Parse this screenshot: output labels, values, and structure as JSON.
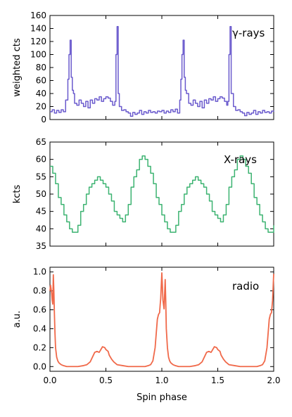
{
  "chart_data": [
    {
      "type": "line",
      "step": true,
      "label": "γ-rays",
      "ylabel": "weighted cts",
      "ylim": [
        0,
        160
      ],
      "yticks": [
        "0",
        "20",
        "40",
        "60",
        "80",
        "100",
        "120",
        "140",
        "160"
      ],
      "xlim": [
        0.0,
        2.0
      ],
      "color": "#6a5acd",
      "series": [
        {
          "x": [
            0.0,
            0.02,
            0.04,
            0.06,
            0.08,
            0.1,
            0.12,
            0.14,
            0.16,
            0.17,
            0.18,
            0.19,
            0.2,
            0.21,
            0.22,
            0.24,
            0.26,
            0.28,
            0.3,
            0.32,
            0.34,
            0.36,
            0.38,
            0.4,
            0.42,
            0.44,
            0.46,
            0.48,
            0.5,
            0.52,
            0.54,
            0.56,
            0.58,
            0.59,
            0.6,
            0.61,
            0.62,
            0.64,
            0.66,
            0.68,
            0.7,
            0.72,
            0.74,
            0.76,
            0.78,
            0.8,
            0.82,
            0.84,
            0.86,
            0.88,
            0.9,
            0.92,
            0.94,
            0.96,
            0.98,
            1.0,
            1.02,
            1.04,
            1.06,
            1.08,
            1.1,
            1.12,
            1.14,
            1.16,
            1.17,
            1.18,
            1.19,
            1.2,
            1.21,
            1.22,
            1.24,
            1.26,
            1.28,
            1.3,
            1.32,
            1.34,
            1.36,
            1.38,
            1.4,
            1.42,
            1.44,
            1.46,
            1.48,
            1.5,
            1.52,
            1.54,
            1.56,
            1.58,
            1.59,
            1.6,
            1.61,
            1.62,
            1.64,
            1.66,
            1.68,
            1.7,
            1.72,
            1.74,
            1.76,
            1.78,
            1.8,
            1.82,
            1.84,
            1.86,
            1.88,
            1.9,
            1.92,
            1.94,
            1.96,
            1.98,
            2.0
          ],
          "y": [
            12,
            15,
            10,
            14,
            11,
            15,
            12,
            30,
            62,
            100,
            122,
            65,
            45,
            40,
            25,
            22,
            30,
            25,
            20,
            28,
            18,
            30,
            25,
            32,
            30,
            35,
            28,
            32,
            35,
            33,
            28,
            22,
            28,
            100,
            143,
            40,
            20,
            14,
            15,
            12,
            10,
            5,
            11,
            8,
            10,
            14,
            8,
            12,
            10,
            14,
            11,
            12,
            10,
            13,
            12,
            14,
            10,
            13,
            11,
            15,
            12,
            16,
            10,
            30,
            62,
            100,
            122,
            65,
            45,
            40,
            25,
            22,
            30,
            25,
            20,
            28,
            18,
            30,
            25,
            32,
            30,
            35,
            28,
            32,
            35,
            33,
            28,
            22,
            28,
            100,
            143,
            40,
            20,
            14,
            15,
            12,
            10,
            6,
            11,
            8,
            10,
            14,
            8,
            12,
            10,
            14,
            11,
            12,
            10,
            13,
            12
          ]
        }
      ]
    },
    {
      "type": "line",
      "step": true,
      "label": "X-rays",
      "ylabel": "kcts",
      "ylim": [
        35,
        65
      ],
      "yticks": [
        "35",
        "40",
        "45",
        "50",
        "55",
        "60",
        "65"
      ],
      "xlim": [
        0.0,
        2.0
      ],
      "color": "#3cb371",
      "series": [
        {
          "x": [
            0.0,
            0.025,
            0.05,
            0.075,
            0.1,
            0.125,
            0.15,
            0.175,
            0.2,
            0.225,
            0.25,
            0.275,
            0.3,
            0.325,
            0.35,
            0.375,
            0.4,
            0.425,
            0.45,
            0.475,
            0.5,
            0.525,
            0.55,
            0.575,
            0.6,
            0.625,
            0.65,
            0.675,
            0.7,
            0.725,
            0.75,
            0.775,
            0.8,
            0.825,
            0.85,
            0.875,
            0.9,
            0.925,
            0.95,
            0.975,
            1.0,
            1.025,
            1.05,
            1.075,
            1.1,
            1.125,
            1.15,
            1.175,
            1.2,
            1.225,
            1.25,
            1.275,
            1.3,
            1.325,
            1.35,
            1.375,
            1.4,
            1.425,
            1.45,
            1.475,
            1.5,
            1.525,
            1.55,
            1.575,
            1.6,
            1.625,
            1.65,
            1.675,
            1.7,
            1.725,
            1.75,
            1.775,
            1.8,
            1.825,
            1.85,
            1.875,
            1.9,
            1.925,
            1.95,
            1.975,
            2.0
          ],
          "y": [
            58,
            56,
            53,
            49,
            47,
            44,
            42,
            40,
            39,
            39,
            41,
            45,
            47,
            50,
            52,
            53,
            54,
            55,
            54,
            53,
            52,
            50,
            48,
            45,
            44,
            43,
            42,
            44,
            47,
            52,
            55,
            57,
            60,
            61,
            60,
            58,
            56,
            53,
            49,
            47,
            44,
            42,
            40,
            39,
            39,
            41,
            45,
            47,
            50,
            52,
            53,
            54,
            55,
            54,
            53,
            52,
            50,
            48,
            45,
            44,
            43,
            42,
            44,
            47,
            52,
            55,
            57,
            60,
            61,
            60,
            58,
            56,
            53,
            49,
            47,
            44,
            42,
            40,
            39,
            39,
            41
          ]
        }
      ]
    },
    {
      "type": "line",
      "step": false,
      "label": "radio",
      "ylabel": "a.u.",
      "ylim": [
        -0.05,
        1.05
      ],
      "yticks": [
        "0.0",
        "0.2",
        "0.4",
        "0.6",
        "0.8",
        "1.0"
      ],
      "xlim": [
        0.0,
        2.0
      ],
      "xticks": [
        "0.0",
        "0.5",
        "1.0",
        "1.5",
        "2.0"
      ],
      "xlabel": "Spin phase",
      "color": "#f0694a",
      "series": [
        {
          "x": [
            0.0,
            0.005,
            0.01,
            0.015,
            0.02,
            0.025,
            0.03,
            0.035,
            0.04,
            0.045,
            0.05,
            0.06,
            0.07,
            0.08,
            0.1,
            0.12,
            0.15,
            0.2,
            0.25,
            0.3,
            0.33,
            0.36,
            0.38,
            0.4,
            0.42,
            0.44,
            0.45,
            0.47,
            0.49,
            0.5,
            0.52,
            0.53,
            0.55,
            0.57,
            0.6,
            0.65,
            0.7,
            0.75,
            0.8,
            0.85,
            0.88,
            0.9,
            0.92,
            0.94,
            0.95,
            0.96,
            0.97,
            0.98,
            0.985,
            0.99,
            1.0,
            1.005,
            1.01,
            1.02,
            1.03,
            1.035,
            1.04,
            1.05,
            1.06,
            1.07,
            1.08,
            1.1,
            1.12,
            1.15,
            1.2,
            1.25,
            1.3,
            1.33,
            1.36,
            1.38,
            1.4,
            1.42,
            1.44,
            1.45,
            1.47,
            1.49,
            1.5,
            1.52,
            1.53,
            1.55,
            1.57,
            1.6,
            1.65,
            1.7,
            1.75,
            1.8,
            1.85,
            1.88,
            1.9,
            1.92,
            1.94,
            1.95,
            1.96,
            1.97,
            1.98,
            1.99,
            2.0
          ],
          "y": [
            0.8,
            0.86,
            0.82,
            0.78,
            0.7,
            0.66,
            0.97,
            0.8,
            0.55,
            0.35,
            0.2,
            0.1,
            0.06,
            0.04,
            0.02,
            0.01,
            0.0,
            0.0,
            0.0,
            0.01,
            0.02,
            0.05,
            0.1,
            0.15,
            0.16,
            0.15,
            0.17,
            0.21,
            0.2,
            0.18,
            0.16,
            0.12,
            0.08,
            0.05,
            0.02,
            0.01,
            0.0,
            0.0,
            0.0,
            0.0,
            0.01,
            0.02,
            0.06,
            0.2,
            0.35,
            0.5,
            0.55,
            0.57,
            0.65,
            0.72,
            0.99,
            0.85,
            0.7,
            0.61,
            0.92,
            0.7,
            0.4,
            0.2,
            0.1,
            0.06,
            0.04,
            0.02,
            0.01,
            0.0,
            0.0,
            0.0,
            0.01,
            0.02,
            0.05,
            0.1,
            0.15,
            0.16,
            0.15,
            0.17,
            0.21,
            0.2,
            0.18,
            0.16,
            0.12,
            0.08,
            0.05,
            0.02,
            0.01,
            0.0,
            0.0,
            0.0,
            0.0,
            0.01,
            0.02,
            0.06,
            0.2,
            0.35,
            0.5,
            0.55,
            0.57,
            0.7,
            0.98
          ]
        }
      ]
    }
  ]
}
